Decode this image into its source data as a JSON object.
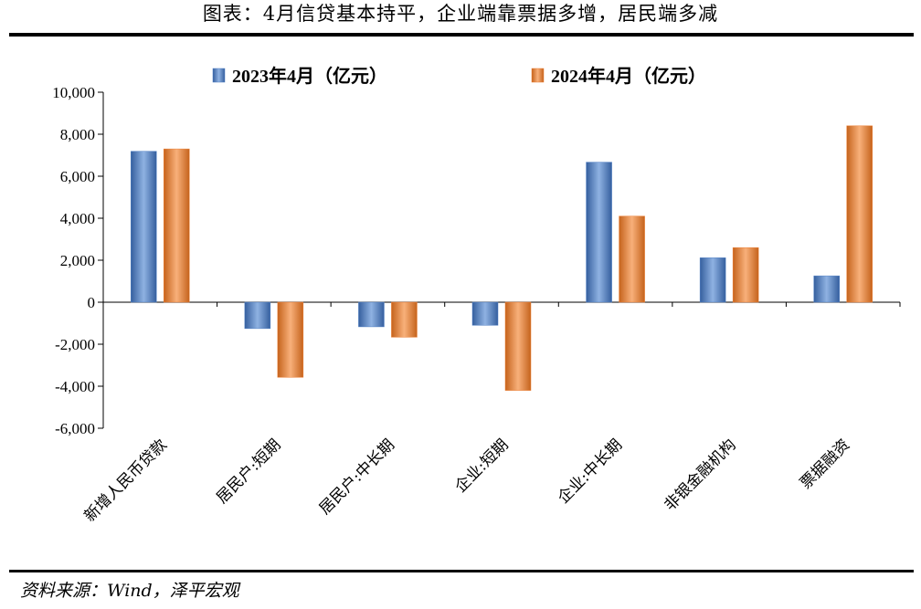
{
  "header": {
    "title": "图表：4月信贷基本持平，企业端靠票据多增，居民端多减"
  },
  "footer": {
    "source": "资料来源：Wind，泽平宏观"
  },
  "colors": {
    "series_2023": "#4f7fc4",
    "series_2024": "#ed7d31",
    "axis": "#000000"
  },
  "chart_data": {
    "type": "bar",
    "title": "",
    "xlabel": "",
    "ylabel": "",
    "ylim": [
      -6000,
      10000
    ],
    "yticks": [
      10000,
      8000,
      6000,
      4000,
      2000,
      0,
      -2000,
      -4000,
      -6000
    ],
    "ytick_labels": [
      "10,000",
      "8,000",
      "6,000",
      "4,000",
      "2,000",
      "0",
      "-2,000",
      "-4,000",
      "-6,000"
    ],
    "grid": false,
    "legend_position": "top",
    "categories": [
      "新增人民币贷款",
      "居民户:短期",
      "居民户:中长期",
      "企业:短期",
      "企业:中长期",
      "非银金融机构",
      "票据融资"
    ],
    "series": [
      {
        "name": "2023年4月（亿元）",
        "values": [
          7188,
          -1255,
          -1171,
          -1100,
          6669,
          2117,
          1256
        ]
      },
      {
        "name": "2024年4月（亿元）",
        "values": [
          7300,
          -3577,
          -1666,
          -4200,
          4100,
          2600,
          8400
        ]
      }
    ]
  }
}
